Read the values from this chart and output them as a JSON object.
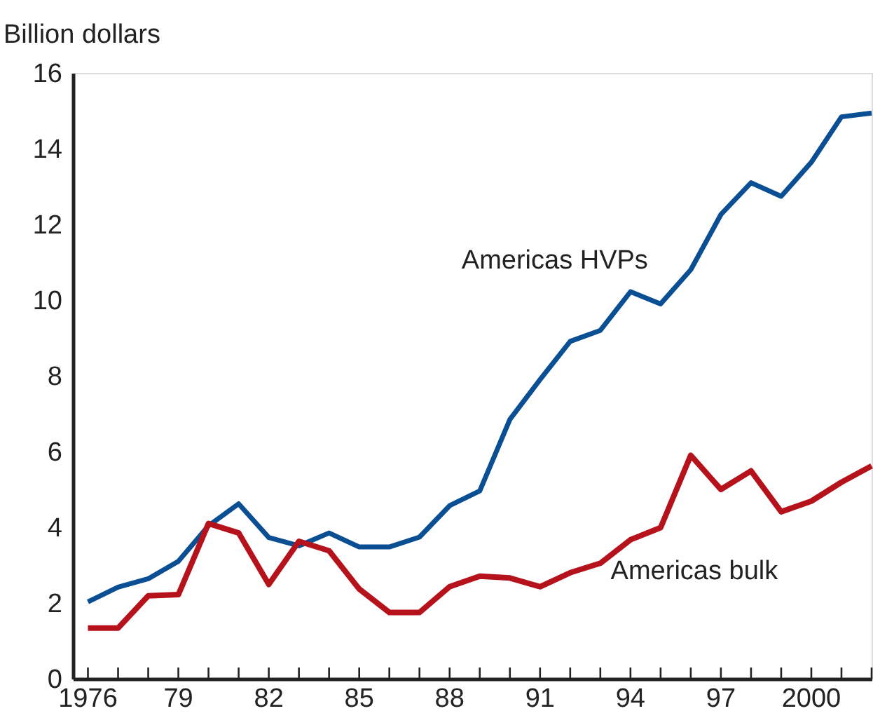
{
  "chart_data": {
    "type": "line",
    "ylabel": "Billion dollars",
    "x": [
      1976,
      1977,
      1978,
      1979,
      1980,
      1981,
      1982,
      1983,
      1984,
      1985,
      1986,
      1987,
      1988,
      1989,
      1990,
      1991,
      1992,
      1993,
      1994,
      1995,
      1996,
      1997,
      1998,
      1999,
      2000,
      2001,
      2002
    ],
    "series": [
      {
        "name": "Americas HVPs",
        "color": "#0a4f94",
        "values": [
          2.03,
          2.42,
          2.64,
          3.1,
          4.04,
          4.62,
          3.73,
          3.51,
          3.85,
          3.48,
          3.48,
          3.74,
          4.57,
          4.96,
          6.85,
          7.9,
          8.91,
          9.2,
          10.22,
          9.9,
          10.8,
          12.26,
          13.1,
          12.74,
          13.64,
          14.84,
          14.94
        ]
      },
      {
        "name": "Americas bulk",
        "color": "#b5121b",
        "values": [
          1.34,
          1.34,
          2.19,
          2.22,
          4.1,
          3.85,
          2.49,
          3.63,
          3.38,
          2.37,
          1.75,
          1.75,
          2.43,
          2.71,
          2.66,
          2.43,
          2.8,
          3.05,
          3.67,
          3.99,
          5.9,
          5.0,
          5.49,
          4.41,
          4.69,
          5.19,
          5.62
        ]
      }
    ],
    "xlim": [
      1975.5,
      2002
    ],
    "xticks": [
      {
        "value": 1976,
        "label": "1976"
      },
      {
        "value": 1977,
        "label": null
      },
      {
        "value": 1978,
        "label": null
      },
      {
        "value": 1979,
        "label": "79"
      },
      {
        "value": 1980,
        "label": null
      },
      {
        "value": 1981,
        "label": null
      },
      {
        "value": 1982,
        "label": "82"
      },
      {
        "value": 1983,
        "label": null
      },
      {
        "value": 1984,
        "label": null
      },
      {
        "value": 1985,
        "label": "85"
      },
      {
        "value": 1986,
        "label": null
      },
      {
        "value": 1987,
        "label": null
      },
      {
        "value": 1988,
        "label": "88"
      },
      {
        "value": 1989,
        "label": null
      },
      {
        "value": 1990,
        "label": null
      },
      {
        "value": 1991,
        "label": "91"
      },
      {
        "value": 1992,
        "label": null
      },
      {
        "value": 1993,
        "label": null
      },
      {
        "value": 1994,
        "label": "94"
      },
      {
        "value": 1995,
        "label": null
      },
      {
        "value": 1996,
        "label": null
      },
      {
        "value": 1997,
        "label": "97"
      },
      {
        "value": 1998,
        "label": null
      },
      {
        "value": 1999,
        "label": null
      },
      {
        "value": 2000,
        "label": "2000"
      },
      {
        "value": 2001,
        "label": null
      },
      {
        "value": 2002,
        "label": null
      }
    ],
    "ylim": [
      0,
      16
    ],
    "yticks": [
      0,
      2,
      4,
      6,
      8,
      10,
      12,
      14,
      16
    ],
    "grid": false,
    "marker": "none",
    "line_style": "solid"
  }
}
